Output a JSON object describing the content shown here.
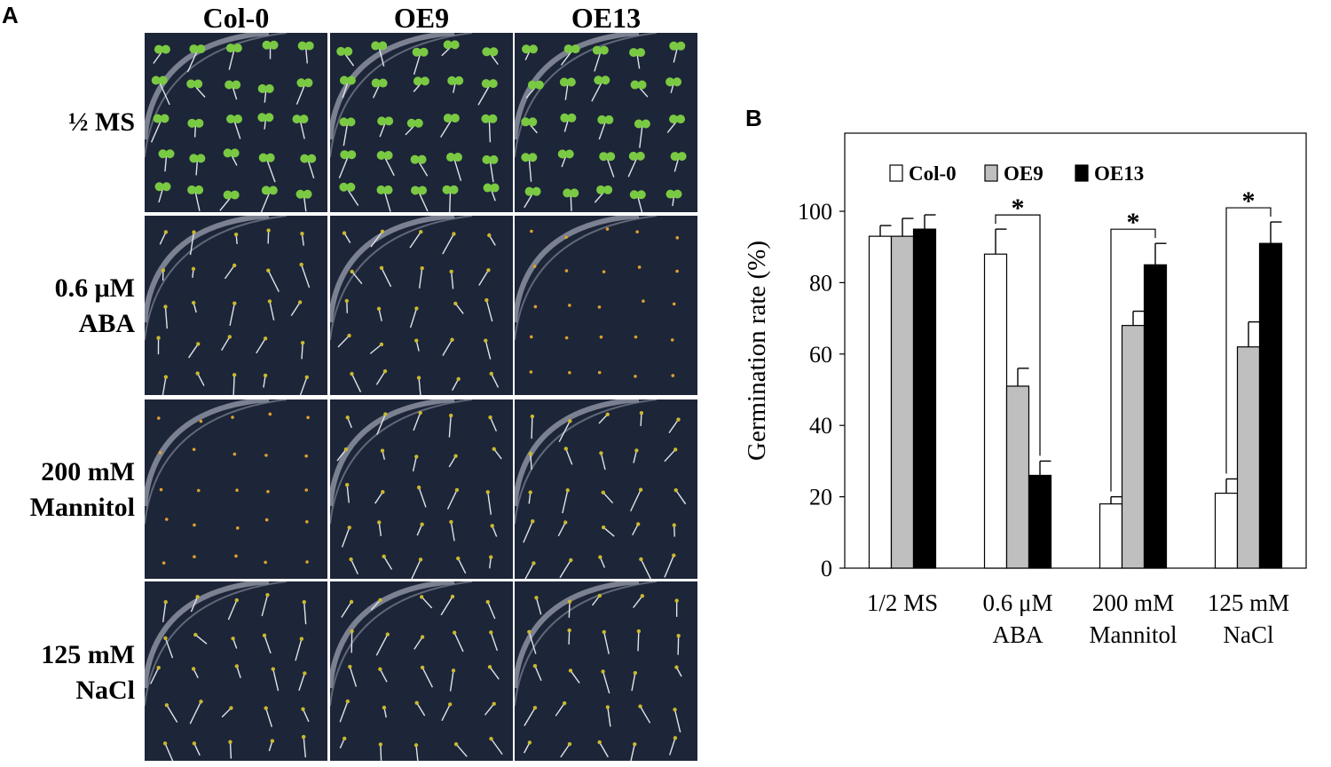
{
  "panel_a": {
    "label": "A",
    "columns": [
      "Col-0",
      "OE9",
      "OE13"
    ],
    "rows": [
      {
        "lines": [
          "½ MS"
        ]
      },
      {
        "lines": [
          "0.6 μM",
          "ABA"
        ]
      },
      {
        "lines": [
          "200 mM",
          "Mannitol"
        ]
      },
      {
        "lines": [
          "125 mM",
          "NaCl"
        ]
      }
    ],
    "plate_color": "#1d2538",
    "seedling_green": "#7ac943"
  },
  "panel_b": {
    "label": "B"
  },
  "chart_data": {
    "type": "bar",
    "categories": [
      [
        "1/2 MS"
      ],
      [
        "0.6 μM",
        "ABA"
      ],
      [
        "200 mM",
        "Mannitol"
      ],
      [
        "125 mM",
        "NaCl"
      ]
    ],
    "series": [
      {
        "name": "Col-0",
        "color": "#ffffff",
        "values": [
          93,
          88,
          18,
          21
        ],
        "errors": [
          3,
          7,
          2,
          4
        ]
      },
      {
        "name": "OE9",
        "color": "#bfbfbf",
        "values": [
          93,
          51,
          68,
          62
        ],
        "errors": [
          5,
          5,
          4,
          7
        ]
      },
      {
        "name": "OE13",
        "color": "#000000",
        "values": [
          95,
          26,
          85,
          91
        ],
        "errors": [
          4,
          4,
          6,
          6
        ]
      }
    ],
    "ylabel": "Germination  rate (%)",
    "ylim": [
      0,
      100
    ],
    "yticks": [
      0,
      20,
      40,
      60,
      80,
      100
    ],
    "legend": "top",
    "significance": [
      {
        "category": 1,
        "from": "Col-0",
        "to": "OE13",
        "label": "*"
      },
      {
        "category": 2,
        "from": "Col-0",
        "to": "OE13",
        "label": "*"
      },
      {
        "category": 3,
        "from": "Col-0",
        "to": "OE13",
        "label": "*"
      }
    ]
  }
}
